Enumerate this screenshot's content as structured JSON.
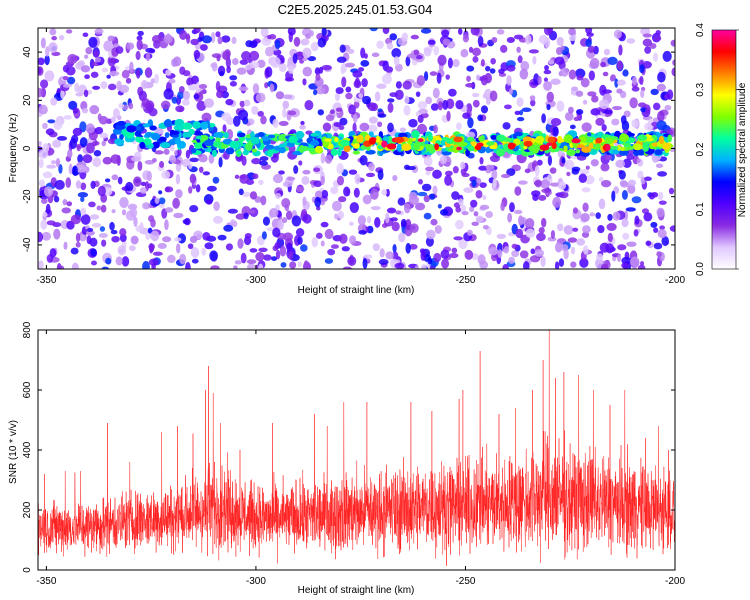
{
  "title": "C2E5.2025.245.01.53.G04",
  "chart_data": [
    {
      "type": "heatmap",
      "name": "spectrogram",
      "xlabel": "Height of straight line (km)",
      "ylabel": "Frequency (Hz)",
      "xlim": [
        -352,
        -200
      ],
      "ylim": [
        -50,
        50
      ],
      "x_ticks": [
        -350,
        -300,
        -250,
        -200
      ],
      "x_tick_labels": [
        "-350",
        "-300",
        "-250",
        "-200"
      ],
      "y_ticks": [
        -40,
        -20,
        0,
        20,
        40
      ],
      "y_tick_labels": [
        "-40",
        "-20",
        "0",
        "20",
        "40"
      ],
      "colorbar": {
        "label": "Normalized spectral amplitude",
        "range": [
          0.0,
          0.4
        ],
        "ticks": [
          0.0,
          0.1,
          0.2,
          0.3,
          0.4
        ],
        "tick_labels": [
          "0.0",
          "0.1",
          "0.2",
          "0.3",
          "0.4"
        ],
        "palette": [
          "#ffffff",
          "#e0c8ff",
          "#8a2be2",
          "#5000ff",
          "#0000ff",
          "#00b0ff",
          "#00ffa0",
          "#80ff00",
          "#ffff00",
          "#ff8000",
          "#ff0000",
          "#ff00a0"
        ]
      },
      "features": {
        "main_band_frequency_hz": 2,
        "main_band_x_range": [
          -315,
          -201
        ],
        "secondary_band_x_range": [
          -333,
          -310
        ],
        "background_level": 0.05,
        "band_peak_level": 0.38
      }
    },
    {
      "type": "line",
      "name": "snr-trace",
      "xlabel": "Height of straight line (km)",
      "ylabel": "SNR (10 * v/v)",
      "xlim": [
        -352,
        -200
      ],
      "ylim": [
        0,
        800
      ],
      "x_ticks": [
        -350,
        -300,
        -250,
        -200
      ],
      "x_tick_labels": [
        "-350",
        "-300",
        "-250",
        "-200"
      ],
      "y_ticks": [
        0,
        200,
        400,
        600,
        800
      ],
      "y_tick_labels": [
        "0",
        "200",
        "400",
        "600",
        "800"
      ],
      "color": "#ff2020",
      "baseline_profile": {
        "x": [
          -352,
          -340,
          -330,
          -320,
          -312,
          -308,
          -300,
          -290,
          -280,
          -270,
          -260,
          -250,
          -240,
          -235,
          -230,
          -225,
          -220,
          -210,
          -200
        ],
        "mean": [
          140,
          145,
          165,
          175,
          200,
          215,
          170,
          175,
          190,
          200,
          210,
          215,
          220,
          235,
          250,
          230,
          230,
          215,
          195
        ],
        "spread": [
          90,
          90,
          100,
          110,
          140,
          150,
          110,
          120,
          130,
          140,
          150,
          150,
          160,
          180,
          200,
          180,
          170,
          160,
          140
        ]
      },
      "peaks": [
        {
          "x": -350.5,
          "y": 320
        },
        {
          "x": -345.5,
          "y": 330
        },
        {
          "x": -343.2,
          "y": 325
        },
        {
          "x": -341.8,
          "y": 330
        },
        {
          "x": -335.4,
          "y": 490
        },
        {
          "x": -330.1,
          "y": 360
        },
        {
          "x": -322.5,
          "y": 460
        },
        {
          "x": -318.7,
          "y": 480
        },
        {
          "x": -315.0,
          "y": 455
        },
        {
          "x": -312.0,
          "y": 600
        },
        {
          "x": -311.3,
          "y": 680
        },
        {
          "x": -310.2,
          "y": 590
        },
        {
          "x": -308.5,
          "y": 490
        },
        {
          "x": -303.8,
          "y": 400
        },
        {
          "x": -296.0,
          "y": 490
        },
        {
          "x": -286.0,
          "y": 520
        },
        {
          "x": -283.0,
          "y": 480
        },
        {
          "x": -279.0,
          "y": 560
        },
        {
          "x": -273.5,
          "y": 560
        },
        {
          "x": -263.0,
          "y": 560
        },
        {
          "x": -258.0,
          "y": 530
        },
        {
          "x": -251.5,
          "y": 570
        },
        {
          "x": -250.6,
          "y": 600
        },
        {
          "x": -246.5,
          "y": 730
        },
        {
          "x": -242.0,
          "y": 520
        },
        {
          "x": -238.0,
          "y": 540
        },
        {
          "x": -234.0,
          "y": 600
        },
        {
          "x": -231.5,
          "y": 700
        },
        {
          "x": -230.0,
          "y": 800
        },
        {
          "x": -228.5,
          "y": 640
        },
        {
          "x": -226.5,
          "y": 660
        },
        {
          "x": -223.0,
          "y": 650
        },
        {
          "x": -219.5,
          "y": 600
        },
        {
          "x": -215.5,
          "y": 550
        },
        {
          "x": -212.0,
          "y": 600
        },
        {
          "x": -207.0,
          "y": 440
        },
        {
          "x": -204.0,
          "y": 480
        },
        {
          "x": -201.5,
          "y": 400
        }
      ]
    }
  ]
}
